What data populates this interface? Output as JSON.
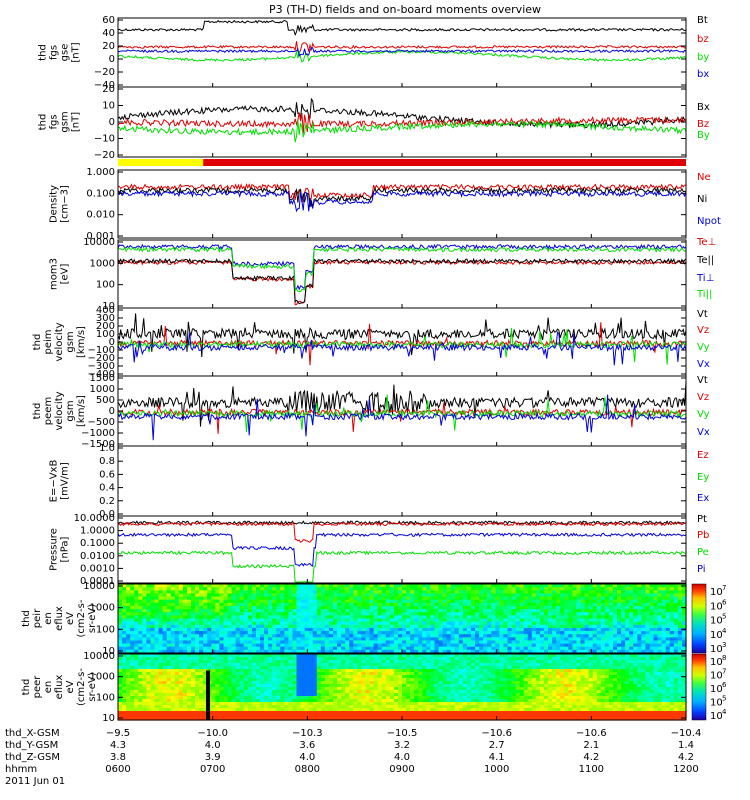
{
  "title": "P3 (TH-D) fields and on-board moments overview",
  "colors": {
    "black": "#000000",
    "red": "#e00000",
    "green": "#00e000",
    "blue": "#0000e0",
    "yellow": "#ffff00"
  },
  "chart_data": [
    {
      "type": "line",
      "panel": "fgs_gse",
      "ylabel": [
        "thd",
        "fgs",
        "gse",
        "[nT]"
      ],
      "yticks": [
        "60",
        "40",
        "20",
        "0",
        "−20",
        "−40"
      ],
      "ylim": [
        -40,
        60
      ],
      "series": [
        {
          "name": "Bt",
          "color": "black"
        },
        {
          "name": "bz",
          "color": "red"
        },
        {
          "name": "by",
          "color": "green"
        },
        {
          "name": "bx",
          "color": "blue"
        }
      ]
    },
    {
      "type": "line",
      "panel": "fgs_gsm",
      "ylabel": [
        "thd",
        "fgs",
        "gsm",
        "[nT]"
      ],
      "yticks": [
        "20",
        "10",
        "0",
        "−10",
        "−20"
      ],
      "ylim": [
        -25,
        25
      ],
      "series": [
        {
          "name": "Bx",
          "color": "black"
        },
        {
          "name": "Bz",
          "color": "red"
        },
        {
          "name": "By",
          "color": "green"
        }
      ]
    },
    {
      "type": "bar",
      "panel": "mode_bar",
      "segments": [
        {
          "color": "yellow",
          "from": 0.0,
          "to": 0.15
        },
        {
          "color": "red",
          "from": 0.15,
          "to": 1.0
        }
      ]
    },
    {
      "type": "line",
      "panel": "density",
      "ylabel": [
        "Density",
        "[cm−3]"
      ],
      "log": true,
      "yticks": [
        "1.000",
        "0.100",
        "0.010",
        "0.001"
      ],
      "ylim": [
        0.001,
        2
      ],
      "series": [
        {
          "name": "Ne",
          "color": "red"
        },
        {
          "name": "Ni",
          "color": "black"
        },
        {
          "name": "Npot",
          "color": "blue"
        }
      ]
    },
    {
      "type": "line",
      "panel": "temperature",
      "ylabel": [
        "mom3",
        "[eV]"
      ],
      "log": true,
      "yticks": [
        "10000",
        "1000",
        "100",
        "10"
      ],
      "ylim": [
        10,
        10000
      ],
      "series": [
        {
          "name": "Te⊥",
          "color": "red"
        },
        {
          "name": "Te||",
          "color": "black"
        },
        {
          "name": "Ti⊥",
          "color": "blue"
        },
        {
          "name": "Ti||",
          "color": "green"
        }
      ]
    },
    {
      "type": "line",
      "panel": "peim_velocity",
      "ylabel": [
        "thd",
        "peim",
        "velocity",
        "gsm",
        "[km/s]"
      ],
      "yticks": [
        "400",
        "300",
        "200",
        "100",
        "0",
        "−100",
        "−200",
        "−300",
        "−400"
      ],
      "ylim": [
        -400,
        400
      ],
      "series": [
        {
          "name": "Vt",
          "color": "black"
        },
        {
          "name": "Vz",
          "color": "red"
        },
        {
          "name": "Vy",
          "color": "green"
        },
        {
          "name": "Vx",
          "color": "blue"
        }
      ]
    },
    {
      "type": "line",
      "panel": "peem_velocity",
      "ylabel": [
        "thd",
        "peem",
        "velocity",
        "gsm",
        "[km/s]"
      ],
      "yticks": [
        "1500",
        "1000",
        "500",
        "0",
        "−500",
        "−1000",
        "−1500"
      ],
      "ylim": [
        -1500,
        1500
      ],
      "series": [
        {
          "name": "Vt",
          "color": "black"
        },
        {
          "name": "Vz",
          "color": "red"
        },
        {
          "name": "Vy",
          "color": "green"
        },
        {
          "name": "Vx",
          "color": "blue"
        }
      ]
    },
    {
      "type": "line",
      "panel": "e_vxb",
      "ylabel": [
        "E=−VxB",
        "[mV/m]"
      ],
      "yticks": [
        "1.0",
        "0.8",
        "0.6",
        "0.4",
        "0.2",
        "0.0"
      ],
      "ylim": [
        0,
        1
      ],
      "series": [
        {
          "name": "Ez",
          "color": "red"
        },
        {
          "name": "Ey",
          "color": "green"
        },
        {
          "name": "Ex",
          "color": "blue"
        }
      ]
    },
    {
      "type": "line",
      "panel": "pressure",
      "ylabel": [
        "Pressure",
        "[nPa]"
      ],
      "log": true,
      "yticks": [
        "10.0000",
        "1.0000",
        "0.1000",
        "0.0100",
        "0.0010",
        "0.0001"
      ],
      "ylim": [
        0.0001,
        10
      ],
      "series": [
        {
          "name": "Pt",
          "color": "black"
        },
        {
          "name": "Pb",
          "color": "red"
        },
        {
          "name": "Pe",
          "color": "green"
        },
        {
          "name": "Pi",
          "color": "blue"
        }
      ]
    },
    {
      "type": "heatmap",
      "panel": "peir_spec",
      "ylabel": [
        "thd",
        "peir",
        "en",
        "eflux",
        "eV",
        "(cm2-s-",
        "sr-eV)"
      ],
      "log": true,
      "yticks": [
        "10000",
        "1000",
        "100",
        "10"
      ],
      "ylim": [
        5,
        20000
      ],
      "colorbar": {
        "ticks": [
          "10",
          "10",
          "10",
          "10",
          "10"
        ],
        "exponents": [
          "7",
          "6",
          "5",
          "4",
          "3"
        ]
      }
    },
    {
      "type": "heatmap",
      "panel": "peer_spec",
      "ylabel": [
        "thd",
        "peer",
        "en",
        "eflux",
        "eV",
        "(cm2-s-",
        "sr-eV)"
      ],
      "log": true,
      "yticks": [
        "10000",
        "1000",
        "100",
        "10"
      ],
      "ylim": [
        7,
        20000
      ],
      "colorbar": {
        "ticks": [
          "10",
          "10",
          "10",
          "10",
          "10"
        ],
        "exponents": [
          "8",
          "7",
          "6",
          "5",
          "4"
        ]
      }
    }
  ],
  "xaxis": {
    "rows": [
      {
        "label": "thd_X-GSM",
        "values": [
          "−9.5",
          "−10.0",
          "−10.3",
          "−10.5",
          "−10.6",
          "−10.6",
          "−10.4"
        ],
        "ticks": [
          "−10.3",
          "−10.5",
          "−10.6"
        ]
      },
      {
        "label": "thd_Y-GSM",
        "values": [
          "4.3",
          "4.0",
          "3.6",
          "3.2",
          "2.7",
          "2.1",
          "1.4"
        ]
      },
      {
        "label": "thd_Z-GSM",
        "values": [
          "3.8",
          "3.9",
          "4.0",
          "4.0",
          "4.1",
          "4.2",
          "4.2"
        ]
      },
      {
        "label": "hhmm",
        "values": [
          "0600",
          "0700",
          "0800",
          "0900",
          "1000",
          "1100",
          "1200"
        ]
      }
    ],
    "date": "2011 Jun 01"
  }
}
